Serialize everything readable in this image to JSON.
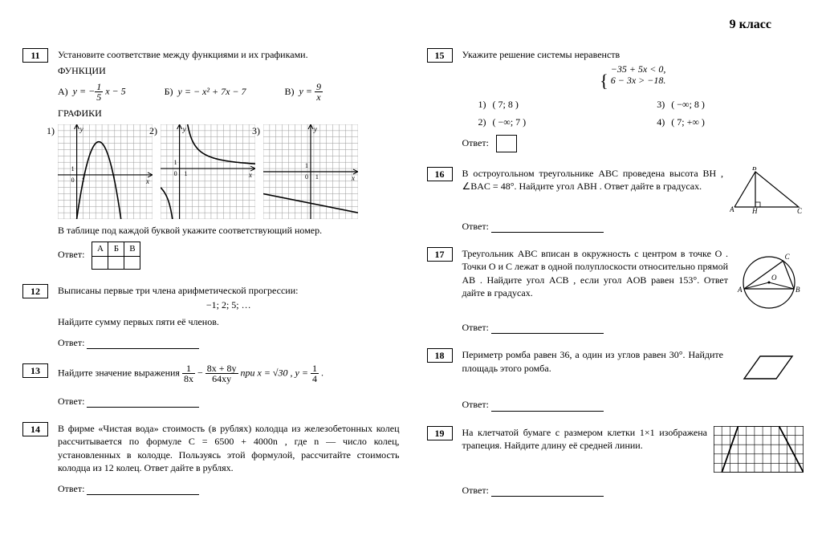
{
  "header": {
    "grade": "9 класс"
  },
  "tasks": {
    "t11": {
      "num": "11",
      "prompt": "Установите соответствие между функциями и их графиками.",
      "functions_label": "ФУНКЦИИ",
      "fnA_label": "А)",
      "fnA_pre": "y = −",
      "fnA_frac_num": "1",
      "fnA_frac_den": "5",
      "fnA_post": " x − 5",
      "fnB_label": "Б)",
      "fnB": "y = − x² + 7x − 7",
      "fnC_label": "В)",
      "fnC_pre": "y = ",
      "fnC_frac_num": "9",
      "fnC_frac_den": "x",
      "graphs_label": "ГРАФИКИ",
      "g1": "1)",
      "g2": "2)",
      "g3": "3)",
      "sub": "В таблице под каждой буквой укажите соответствующий номер.",
      "abv_A": "А",
      "abv_B": "Б",
      "abv_V": "В",
      "graph": {
        "size": 118,
        "grid_cells": 15,
        "bg": "#ffffff",
        "grid_color": "#9a9a9a",
        "axis_color": "#000000",
        "curve_color": "#000000"
      }
    },
    "t12": {
      "num": "12",
      "prompt": "Выписаны первые три члена арифметической прогрессии:",
      "seq": "−1; 2; 5; …",
      "q": "Найдите сумму первых пяти её членов."
    },
    "t13": {
      "num": "13",
      "pre": "Найдите значение выражения ",
      "f1_num": "1",
      "f1_den": "8x",
      "minus": " − ",
      "f2_num": "8x + 8y",
      "f2_den": "64xy",
      "mid": " при x = √30 , y = ",
      "f3_num": "1",
      "f3_den": "4",
      "end": " ."
    },
    "t14": {
      "num": "14",
      "text": "В фирме «Чистая вода» стоимость (в рублях) колодца из железобетонных колец рассчитывается по формуле C = 6500 + 4000n , где n — число колец, установленных в колодце. Пользуясь этой формулой, рассчитайте стоимость колодца из 12 колец. Ответ дайте в рублях."
    },
    "t15": {
      "num": "15",
      "prompt": "Укажите решение системы неравенств",
      "sys1": "−35 + 5x < 0,",
      "sys2": "6 − 3x > −18.",
      "o1_n": "1)",
      "o1": "( 7; 8 )",
      "o2_n": "2)",
      "o2": "( −∞; 7 )",
      "o3_n": "3)",
      "o3": "( −∞; 8 )",
      "o4_n": "4)",
      "o4": "( 7; +∞ )"
    },
    "t16": {
      "num": "16",
      "text": "В остроугольном треугольнике ABC проведена высота BH , ∠BAC = 48°. Найдите угол ABH . Ответ дайте в градусах.",
      "lblA": "A",
      "lblB": "B",
      "lblC": "C",
      "lblH": "H"
    },
    "t17": {
      "num": "17",
      "text": "Треугольник ABC вписан в окружность с центром в точке O . Точки O и C лежат в одной полуплоскости относительно прямой AB . Найдите угол ACB , если угол AOB равен 153°. Ответ дайте в градусах.",
      "lblA": "A",
      "lblB": "B",
      "lblC": "C",
      "lblO": "O"
    },
    "t18": {
      "num": "18",
      "text": "Периметр ромба равен 36, а один из углов равен 30°. Найдите площадь этого ромба."
    },
    "t19": {
      "num": "19",
      "text": "На клетчатой бумаге с размером клетки 1×1 изображена трапеция. Найдите длину её средней линии."
    },
    "common": {
      "answer_label": "Ответ:"
    }
  }
}
